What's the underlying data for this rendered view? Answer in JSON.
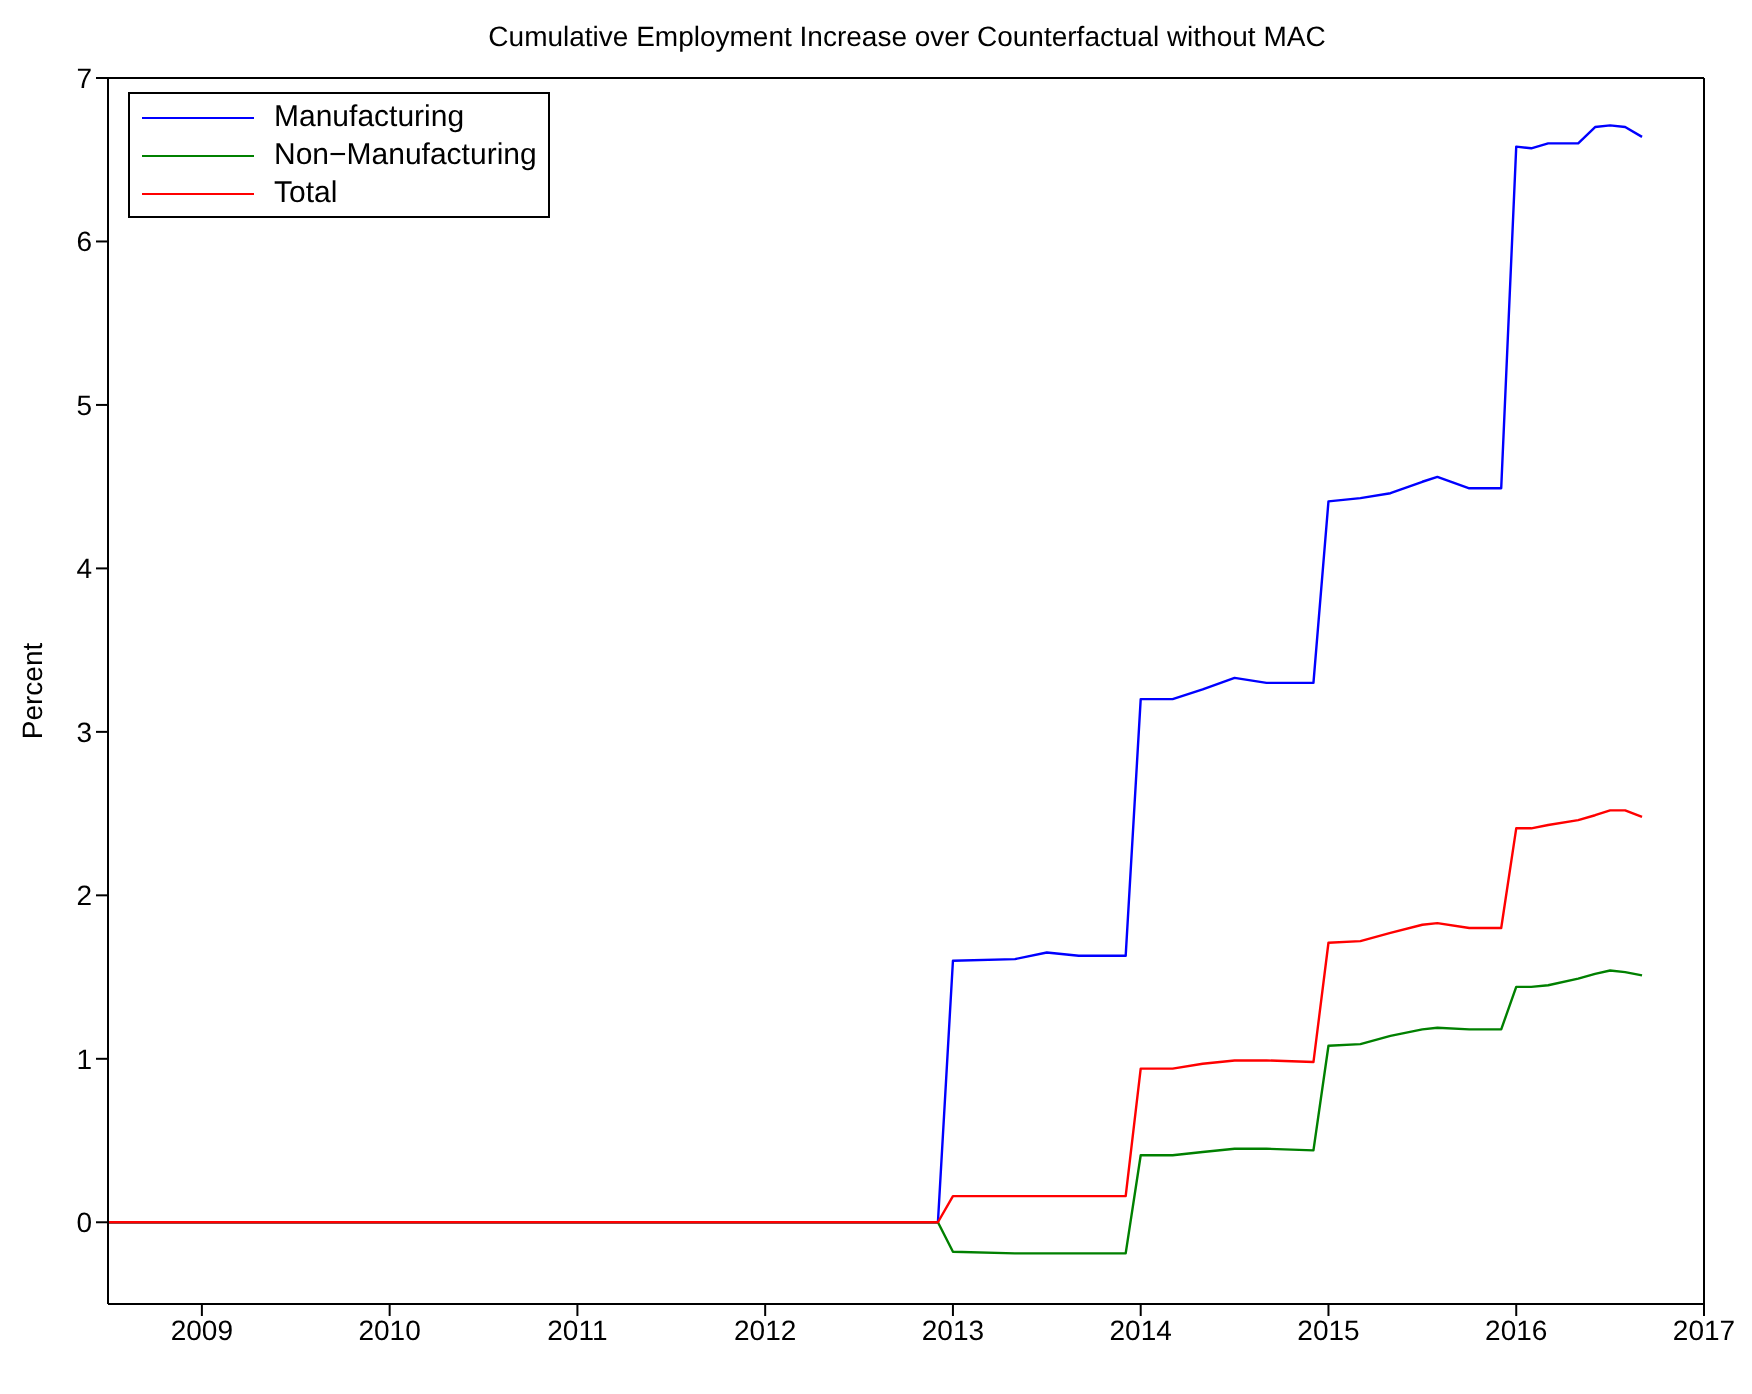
{
  "chart_data": {
    "type": "line",
    "title": "Cumulative Employment Increase over Counterfactual without MAC",
    "ylabel": "Percent",
    "x": [
      2008.5,
      2012.92,
      2013.0,
      2013.33,
      2013.5,
      2013.67,
      2013.92,
      2014.0,
      2014.17,
      2014.33,
      2014.5,
      2014.67,
      2014.92,
      2015.0,
      2015.17,
      2015.33,
      2015.5,
      2015.58,
      2015.75,
      2015.92,
      2016.0,
      2016.08,
      2016.17,
      2016.33,
      2016.42,
      2016.5,
      2016.58,
      2016.67
    ],
    "series": [
      {
        "name": "Manufacturing",
        "color": "#0000ff",
        "values": [
          0,
          0,
          1.6,
          1.61,
          1.65,
          1.63,
          1.63,
          3.2,
          3.2,
          3.26,
          3.33,
          3.3,
          3.3,
          4.41,
          4.43,
          4.46,
          4.53,
          4.56,
          4.49,
          4.49,
          6.58,
          6.57,
          6.6,
          6.6,
          6.7,
          6.71,
          6.7,
          6.64
        ]
      },
      {
        "name": "Non−Manufacturing",
        "color": "#008000",
        "values": [
          0,
          0,
          -0.18,
          -0.19,
          -0.19,
          -0.19,
          -0.19,
          0.41,
          0.41,
          0.43,
          0.45,
          0.45,
          0.44,
          1.08,
          1.09,
          1.14,
          1.18,
          1.19,
          1.18,
          1.18,
          1.44,
          1.44,
          1.45,
          1.49,
          1.52,
          1.54,
          1.53,
          1.51
        ]
      },
      {
        "name": "Total",
        "color": "#ff0000",
        "values": [
          0,
          0,
          0.16,
          0.16,
          0.16,
          0.16,
          0.16,
          0.94,
          0.94,
          0.97,
          0.99,
          0.99,
          0.98,
          1.71,
          1.72,
          1.77,
          1.82,
          1.83,
          1.8,
          1.8,
          2.41,
          2.41,
          2.43,
          2.46,
          2.49,
          2.52,
          2.52,
          2.48
        ]
      }
    ],
    "xlim": [
      2008.5,
      2017
    ],
    "xticks": [
      2009,
      2010,
      2011,
      2012,
      2013,
      2014,
      2015,
      2016,
      2017
    ],
    "ylim": [
      -0.5,
      7
    ],
    "yticks": [
      0,
      1,
      2,
      3,
      4,
      5,
      6,
      7
    ],
    "grid": false,
    "legend": "top left",
    "marker": "none",
    "line_style": "solid"
  }
}
